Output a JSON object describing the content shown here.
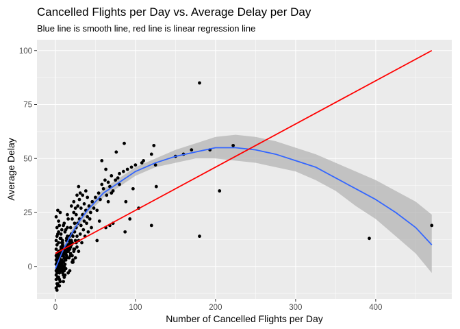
{
  "chart_data": {
    "type": "scatter",
    "title": "Cancelled Flights per Day vs. Average Delay per Day",
    "subtitle": "Blue line is smooth line, red line is linear regression line",
    "xlabel": "Number of Cancelled Flights per Day",
    "ylabel": "Average Delay",
    "xlim": [
      -23,
      495
    ],
    "ylim": [
      -15,
      105
    ],
    "x_ticks": [
      0,
      100,
      200,
      300,
      400
    ],
    "y_ticks": [
      0,
      25,
      50,
      75,
      100
    ],
    "grid": true,
    "legend": "none",
    "colors": {
      "panel": "#ebebeb",
      "grid_major": "#ffffff",
      "points": "#000000",
      "smooth_line": "#3366ff",
      "confidence_band": "#b0b0b0",
      "regression_line": "#ff0000"
    },
    "series": [
      {
        "type": "scatter",
        "points": [
          [
            1,
            -10
          ],
          [
            2,
            -8
          ],
          [
            1,
            -6
          ],
          [
            3,
            -5
          ],
          [
            2,
            -3
          ],
          [
            1,
            -2
          ],
          [
            4,
            -1
          ],
          [
            3,
            0
          ],
          [
            2,
            1
          ],
          [
            5,
            2
          ],
          [
            1,
            3
          ],
          [
            3,
            4
          ],
          [
            6,
            5
          ],
          [
            2,
            6
          ],
          [
            4,
            7
          ],
          [
            7,
            8
          ],
          [
            1,
            -4
          ],
          [
            5,
            -3
          ],
          [
            8,
            -2
          ],
          [
            6,
            -1
          ],
          [
            9,
            0
          ],
          [
            3,
            1
          ],
          [
            10,
            2
          ],
          [
            4,
            3
          ],
          [
            11,
            4
          ],
          [
            7,
            5
          ],
          [
            12,
            6
          ],
          [
            5,
            7
          ],
          [
            8,
            8
          ],
          [
            13,
            9
          ],
          [
            2,
            10
          ],
          [
            9,
            11
          ],
          [
            14,
            12
          ],
          [
            6,
            13
          ],
          [
            10,
            -7
          ],
          [
            15,
            14
          ],
          [
            3,
            -9
          ],
          [
            11,
            -5
          ],
          [
            7,
            15
          ],
          [
            16,
            10
          ],
          [
            1,
            12
          ],
          [
            4,
            16
          ],
          [
            12,
            -4
          ],
          [
            8,
            11
          ],
          [
            17,
            9
          ],
          [
            5,
            -6
          ],
          [
            13,
            17
          ],
          [
            9,
            -3
          ],
          [
            18,
            8
          ],
          [
            2,
            18
          ],
          [
            6,
            -2
          ],
          [
            14,
            13
          ],
          [
            10,
            19
          ],
          [
            3,
            -8
          ],
          [
            15,
            7
          ],
          [
            11,
            20
          ],
          [
            7,
            -1
          ],
          [
            19,
            6
          ],
          [
            4,
            21
          ],
          [
            12,
            1
          ],
          [
            16,
            22
          ],
          [
            8,
            2
          ],
          [
            1,
            23
          ],
          [
            13,
            3
          ],
          [
            20,
            10
          ],
          [
            5,
            -9
          ],
          [
            17,
            4
          ],
          [
            9,
            12
          ],
          [
            14,
            5
          ],
          [
            2,
            14
          ],
          [
            21,
            11
          ],
          [
            6,
            -7
          ],
          [
            10,
            9
          ],
          [
            18,
            -2
          ],
          [
            3,
            15
          ],
          [
            15,
            24
          ],
          [
            11,
            6
          ],
          [
            7,
            13
          ],
          [
            22,
            3
          ],
          [
            4,
            -5
          ],
          [
            12,
            16
          ],
          [
            19,
            5
          ],
          [
            1,
            8
          ],
          [
            16,
            -3
          ],
          [
            8,
            17
          ],
          [
            23,
            7
          ],
          [
            5,
            19
          ],
          [
            13,
            -1
          ],
          [
            9,
            10
          ],
          [
            20,
            15
          ],
          [
            2,
            -11
          ],
          [
            17,
            12
          ],
          [
            6,
            25
          ],
          [
            14,
            4
          ],
          [
            24,
            8
          ],
          [
            3,
            26
          ],
          [
            10,
            -4
          ],
          [
            21,
            2
          ],
          [
            7,
            9
          ],
          [
            18,
            14
          ],
          [
            11,
            -2
          ],
          [
            4,
            11
          ],
          [
            25,
            12
          ],
          [
            15,
            18
          ],
          [
            8,
            5
          ],
          [
            12,
            3
          ],
          [
            1,
            1
          ],
          [
            2,
            2
          ],
          [
            3,
            3
          ],
          [
            4,
            4
          ],
          [
            5,
            0
          ],
          [
            6,
            1
          ],
          [
            7,
            2
          ],
          [
            8,
            3
          ],
          [
            9,
            -1
          ],
          [
            10,
            0
          ],
          [
            2,
            -1
          ],
          [
            3,
            -2
          ],
          [
            4,
            0
          ],
          [
            5,
            1
          ],
          [
            6,
            0
          ],
          [
            7,
            -1
          ],
          [
            8,
            1
          ],
          [
            9,
            2
          ],
          [
            11,
            0
          ],
          [
            12,
            -1
          ],
          [
            1,
            5
          ],
          [
            2,
            4
          ],
          [
            3,
            6
          ],
          [
            4,
            5
          ],
          [
            5,
            4
          ],
          [
            6,
            3
          ],
          [
            7,
            6
          ],
          [
            8,
            7
          ],
          [
            9,
            6
          ],
          [
            10,
            5
          ],
          [
            11,
            8
          ],
          [
            12,
            7
          ],
          [
            13,
            6
          ],
          [
            14,
            9
          ],
          [
            15,
            8
          ],
          [
            16,
            7
          ],
          [
            17,
            10
          ],
          [
            18,
            11
          ],
          [
            19,
            9
          ],
          [
            20,
            12
          ],
          [
            22,
            14
          ],
          [
            24,
            16
          ],
          [
            26,
            18
          ],
          [
            28,
            20
          ],
          [
            30,
            22
          ],
          [
            32,
            19
          ],
          [
            34,
            24
          ],
          [
            36,
            21
          ],
          [
            38,
            26
          ],
          [
            40,
            23
          ],
          [
            42,
            28
          ],
          [
            44,
            25
          ],
          [
            46,
            30
          ],
          [
            48,
            27
          ],
          [
            50,
            32
          ],
          [
            27,
            9
          ],
          [
            29,
            12
          ],
          [
            31,
            15
          ],
          [
            33,
            11
          ],
          [
            35,
            17
          ],
          [
            37,
            14
          ],
          [
            39,
            20
          ],
          [
            41,
            16
          ],
          [
            43,
            22
          ],
          [
            45,
            18
          ],
          [
            26,
            24
          ],
          [
            28,
            28
          ],
          [
            30,
            31
          ],
          [
            32,
            27
          ],
          [
            34,
            33
          ],
          [
            36,
            29
          ],
          [
            38,
            35
          ],
          [
            40,
            32
          ],
          [
            23,
            30
          ],
          [
            25,
            27
          ],
          [
            27,
            33
          ],
          [
            29,
            37
          ],
          [
            31,
            34
          ],
          [
            21,
            5
          ],
          [
            23,
            8
          ],
          [
            25,
            4
          ],
          [
            27,
            14
          ],
          [
            29,
            7
          ],
          [
            19,
            18
          ],
          [
            21,
            22
          ],
          [
            23,
            25
          ],
          [
            20,
            28
          ],
          [
            22,
            2
          ],
          [
            24,
            20
          ],
          [
            26,
            11
          ],
          [
            52,
            26
          ],
          [
            54,
            34
          ],
          [
            56,
            31
          ],
          [
            58,
            38
          ],
          [
            60,
            36
          ],
          [
            62,
            40
          ],
          [
            64,
            33
          ],
          [
            66,
            39
          ],
          [
            68,
            37
          ],
          [
            70,
            42
          ],
          [
            72,
            35
          ],
          [
            75,
            40
          ],
          [
            78,
            41
          ],
          [
            80,
            38
          ],
          [
            85,
            44
          ],
          [
            90,
            45
          ],
          [
            95,
            46
          ],
          [
            100,
            47
          ],
          [
            110,
            49
          ],
          [
            120,
            52
          ],
          [
            58,
            49
          ],
          [
            66,
            30
          ],
          [
            52,
            12
          ],
          [
            55,
            21
          ],
          [
            63,
            18
          ],
          [
            68,
            19
          ],
          [
            72,
            20
          ],
          [
            88,
            30
          ],
          [
            87,
            16
          ],
          [
            93,
            22
          ],
          [
            104,
            27
          ],
          [
            120,
            19
          ],
          [
            63,
            45
          ],
          [
            86,
            57
          ],
          [
            76,
            53
          ],
          [
            108,
            48
          ],
          [
            123,
            56
          ],
          [
            125,
            47
          ],
          [
            126,
            37
          ],
          [
            97,
            36
          ],
          [
            70,
            34
          ],
          [
            80,
            43
          ],
          [
            150,
            51
          ],
          [
            160,
            52
          ],
          [
            170,
            54
          ],
          [
            180,
            85
          ],
          [
            193,
            54
          ],
          [
            205,
            35
          ],
          [
            222,
            56
          ],
          [
            180,
            14
          ],
          [
            392,
            13
          ],
          [
            470,
            19
          ]
        ]
      },
      {
        "type": "smooth",
        "name": "",
        "points": [
          [
            0,
            -1
          ],
          [
            10,
            8
          ],
          [
            20,
            15
          ],
          [
            30,
            21
          ],
          [
            40,
            26
          ],
          [
            50,
            30
          ],
          [
            60,
            34
          ],
          [
            80,
            39
          ],
          [
            100,
            44
          ],
          [
            125,
            48
          ],
          [
            150,
            51
          ],
          [
            175,
            53
          ],
          [
            200,
            55
          ],
          [
            225,
            55
          ],
          [
            250,
            54
          ],
          [
            275,
            52
          ],
          [
            300,
            49
          ],
          [
            325,
            46
          ],
          [
            350,
            41
          ],
          [
            375,
            36
          ],
          [
            400,
            31
          ],
          [
            425,
            25
          ],
          [
            450,
            18
          ],
          [
            470,
            10
          ]
        ],
        "band_upper": [
          [
            0,
            2
          ],
          [
            10,
            10
          ],
          [
            20,
            17
          ],
          [
            30,
            23
          ],
          [
            40,
            28
          ],
          [
            50,
            32
          ],
          [
            60,
            36
          ],
          [
            80,
            41
          ],
          [
            100,
            46
          ],
          [
            125,
            50
          ],
          [
            150,
            54
          ],
          [
            175,
            57
          ],
          [
            200,
            60
          ],
          [
            225,
            61
          ],
          [
            250,
            60
          ],
          [
            275,
            58
          ],
          [
            300,
            55
          ],
          [
            325,
            52
          ],
          [
            350,
            48
          ],
          [
            375,
            44
          ],
          [
            400,
            40
          ],
          [
            425,
            35
          ],
          [
            450,
            30
          ],
          [
            470,
            24
          ]
        ],
        "band_lower": [
          [
            0,
            -4
          ],
          [
            10,
            5
          ],
          [
            20,
            13
          ],
          [
            30,
            19
          ],
          [
            40,
            24
          ],
          [
            50,
            28
          ],
          [
            60,
            32
          ],
          [
            80,
            37
          ],
          [
            100,
            42
          ],
          [
            125,
            46
          ],
          [
            150,
            48
          ],
          [
            175,
            50
          ],
          [
            200,
            50
          ],
          [
            225,
            49
          ],
          [
            250,
            48
          ],
          [
            275,
            46
          ],
          [
            300,
            44
          ],
          [
            325,
            40
          ],
          [
            350,
            35
          ],
          [
            375,
            28
          ],
          [
            400,
            22
          ],
          [
            425,
            14
          ],
          [
            450,
            6
          ],
          [
            470,
            -3
          ]
        ]
      },
      {
        "type": "linear",
        "name": "",
        "points": [
          [
            0,
            6
          ],
          [
            470,
            100
          ]
        ]
      }
    ]
  }
}
